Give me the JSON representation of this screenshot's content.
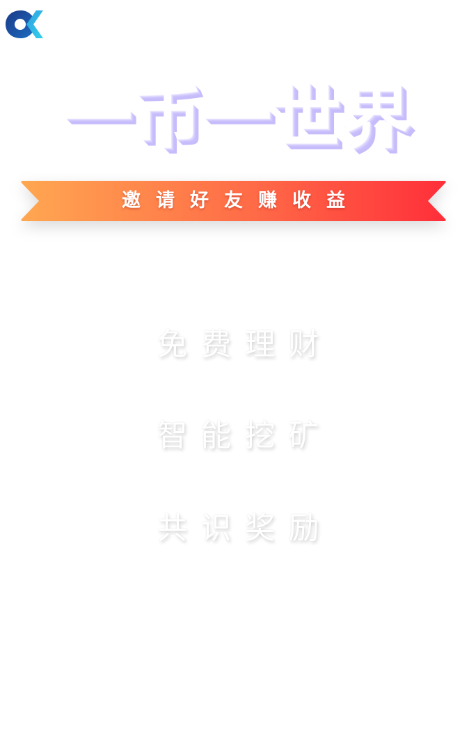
{
  "hero": {
    "title": "一币一世界"
  },
  "invite": {
    "label": "邀请好友赚收益"
  },
  "features": [
    {
      "label": "免费理财"
    },
    {
      "label": "智能挖矿"
    },
    {
      "label": "共识奖励"
    }
  ],
  "colors": {
    "ribbon_start": "#ffa751",
    "ribbon_end": "#ff2f3a",
    "title_shadow": "#c6bcfb",
    "logo_dark": "#1c3e8c",
    "logo_light": "#2ab7e8"
  },
  "icons": {
    "logo": "app-logo-icon"
  }
}
